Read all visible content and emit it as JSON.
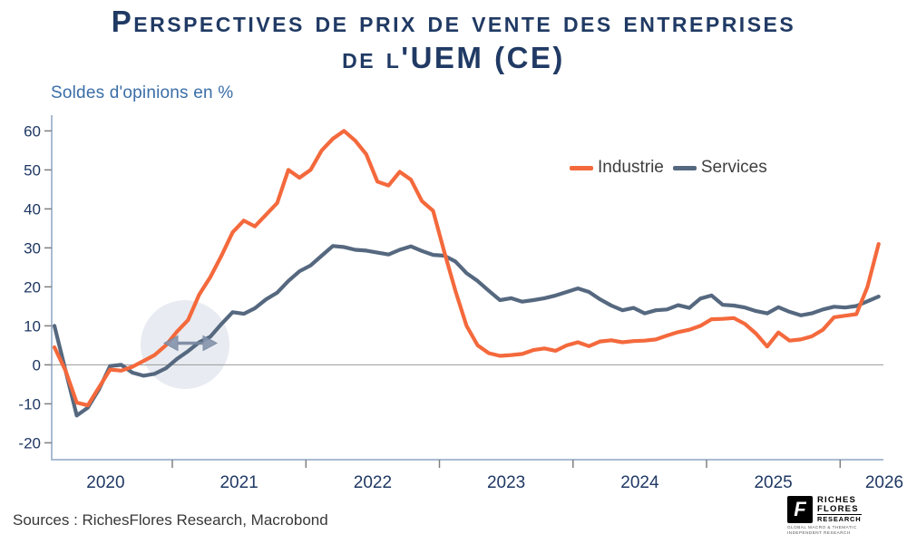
{
  "header": {
    "title_line1": "Perspectives de prix de vente des entreprises",
    "title_line2": "de l'UEM (CE)",
    "subtitle": "Soldes d'opinions en %"
  },
  "legend": [
    {
      "label": "Industrie",
      "color": "#F4693C"
    },
    {
      "label": "Services",
      "color": "#55687F"
    }
  ],
  "chart_data": {
    "type": "line",
    "title": "Perspectives de prix de vente des entreprises de l'UEM (CE)",
    "ylabel": "Soldes d'opinions en %",
    "xlabel": "",
    "grid": "zero-line-only",
    "legend_position": "inside-top-right",
    "ylim": [
      -25,
      65
    ],
    "y_ticks": [
      60,
      50,
      40,
      30,
      20,
      10,
      0,
      -10,
      -20
    ],
    "x_tick_labels": [
      "2020",
      "2021",
      "2022",
      "2023",
      "2024",
      "2025",
      "2026"
    ],
    "x_frequency": "monthly",
    "x_start_label": "2020",
    "series": [
      {
        "name": "Industrie",
        "color": "#F4693C",
        "values": [
          4.5,
          -1.5,
          -9.7,
          -10.4,
          -5.8,
          -1.2,
          -1.5,
          -0.5,
          1,
          2.5,
          5,
          8.5,
          11.5,
          18,
          22.5,
          28,
          34,
          37,
          35.5,
          38.5,
          41.5,
          50,
          48,
          50,
          55,
          58,
          60,
          57.5,
          54,
          47,
          46,
          49.5,
          47.5,
          42,
          39.5,
          29,
          19,
          10,
          5,
          3,
          2.3,
          2.5,
          2.8,
          3.8,
          4.2,
          3.6,
          5,
          5.8,
          4.8,
          6,
          6.3,
          5.8,
          6.1,
          6.2,
          6.5,
          7.5,
          8.4,
          9,
          10,
          11.7,
          11.8,
          12,
          10.5,
          8,
          4.7,
          8.3,
          6.2,
          6.5,
          7.3,
          9,
          12.2,
          12.6,
          13,
          20,
          31
        ]
      },
      {
        "name": "Services",
        "color": "#55687F",
        "values": [
          10,
          -1.5,
          -13,
          -11,
          -6.3,
          -0.3,
          0,
          -2,
          -2.8,
          -2.3,
          -0.9,
          1.5,
          3.5,
          5.8,
          7.2,
          10.5,
          13.5,
          13.1,
          14.5,
          16.8,
          18.5,
          21.5,
          24,
          25.5,
          28,
          30.5,
          30.2,
          29.5,
          29.3,
          28.8,
          28.3,
          29.5,
          30.4,
          29.2,
          28.2,
          28,
          26.5,
          23.5,
          21.5,
          19,
          16.6,
          17.1,
          16.2,
          16.6,
          17.1,
          17.8,
          18.7,
          19.6,
          18.7,
          16.8,
          15.2,
          14,
          14.6,
          13.2,
          14,
          14.2,
          15.3,
          14.6,
          17,
          17.8,
          15.4,
          15.2,
          14.7,
          13.8,
          13.2,
          14.8,
          13.6,
          12.7,
          13.2,
          14.2,
          14.9,
          14.7,
          15.1,
          16.3,
          17.5
        ]
      }
    ],
    "annotation": {
      "type": "circle-with-double-arrow",
      "description": "Light grey circle with horizontal double-headed arrow highlighting the 2020-2021 turning area"
    }
  },
  "footer": {
    "sources": "Sources : RichesFlores Research, Macrobond"
  },
  "logo": {
    "glyph": "F",
    "line1": "RICHES",
    "line2": "FLORES",
    "line3": "RESEARCH",
    "tagline1": "GLOBAL MACRO & THEMATIC",
    "tagline2": "INDEPENDENT RESEARCH"
  }
}
